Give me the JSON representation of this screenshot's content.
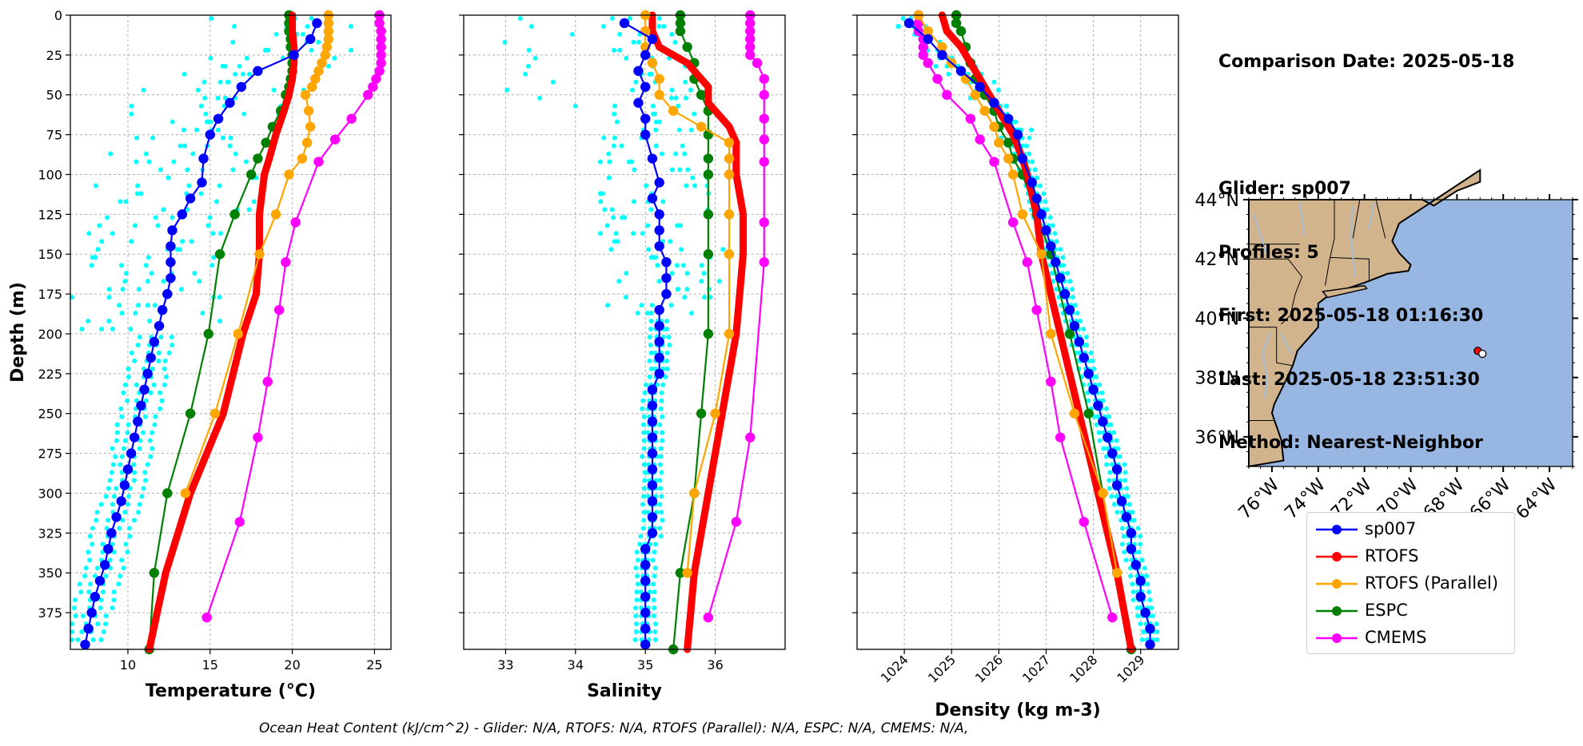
{
  "info": {
    "comparison_date": "Comparison Date: 2025-05-18",
    "glider": "Glider: sp007",
    "profiles": "Profiles: 5",
    "first": "First: 2025-05-18 01:16:30",
    "last": "Last: 2025-05-18 23:51:30",
    "method": "Method: Nearest-Neighbor"
  },
  "footer": "Ocean Heat Content (kJ/cm^2) - Glider: N/A,  RTOFS: N/A,  RTOFS (Parallel): N/A,  ESPC: N/A,  CMEMS: N/A,",
  "colors": {
    "sp007": "#0000ff",
    "RTOFS": "#ff0000",
    "RTOFS (Parallel)": "#ffa500",
    "ESPC": "#008000",
    "CMEMS": "#ff00ff",
    "individual_profiles": "#00ffff",
    "land": "#d2b48c",
    "ocean": "#97b6e1",
    "rivers": "#a6bcd6"
  },
  "legend": [
    "sp007",
    "RTOFS",
    "RTOFS (Parallel)",
    "ESPC",
    "CMEMS"
  ],
  "chart_data": [
    {
      "type": "line",
      "xlabel": "Temperature (°C)",
      "ylabel": "Depth (m)",
      "xlim": [
        6.5,
        26
      ],
      "ylim": [
        398,
        0
      ],
      "xticks": [
        10,
        15,
        20,
        25
      ],
      "yticks": [
        0,
        25,
        50,
        75,
        100,
        125,
        150,
        175,
        200,
        225,
        250,
        275,
        300,
        325,
        350,
        375
      ],
      "grid": true,
      "series": [
        {
          "name": "sp007",
          "depth": [
            5,
            15,
            25,
            35,
            45,
            55,
            65,
            75,
            90,
            105,
            115,
            125,
            135,
            145,
            155,
            165,
            175,
            185,
            195,
            205,
            215,
            225,
            235,
            245,
            255,
            265,
            275,
            285,
            295,
            305,
            315,
            325,
            335,
            345,
            355,
            365,
            375,
            385,
            395
          ],
          "values": [
            21.5,
            21.1,
            20.1,
            17.9,
            16.9,
            16.2,
            15.5,
            15.0,
            14.6,
            14.5,
            13.8,
            13.3,
            12.7,
            12.6,
            12.6,
            12.6,
            12.4,
            12.1,
            11.9,
            11.6,
            11.4,
            11.2,
            11.0,
            10.8,
            10.6,
            10.4,
            10.2,
            10.0,
            9.8,
            9.6,
            9.3,
            9.0,
            8.8,
            8.6,
            8.3,
            8.0,
            7.8,
            7.6,
            7.4
          ]
        },
        {
          "name": "RTOFS",
          "depth": [
            0,
            10,
            20,
            30,
            40,
            50,
            60,
            75,
            90,
            100,
            125,
            150,
            175,
            200,
            250,
            300,
            350,
            398
          ],
          "values": [
            20.0,
            20.0,
            20.1,
            20.1,
            20.0,
            19.8,
            19.5,
            19.0,
            18.6,
            18.3,
            18.0,
            18.0,
            17.8,
            17.0,
            15.8,
            13.8,
            12.3,
            11.3
          ],
          "bold": true
        },
        {
          "name": "RTOFS (Parallel)",
          "depth": [
            0,
            5,
            10,
            15,
            20,
            25,
            30,
            35,
            40,
            45,
            50,
            60,
            70,
            80,
            90,
            100,
            125,
            150,
            200,
            250,
            300
          ],
          "values": [
            22.2,
            22.2,
            22.2,
            22.2,
            22.1,
            22.0,
            21.8,
            21.6,
            21.4,
            21.2,
            20.8,
            21.0,
            21.1,
            20.9,
            20.6,
            19.8,
            19.0,
            18.0,
            16.7,
            15.3,
            13.5
          ]
        },
        {
          "name": "ESPC",
          "depth": [
            0,
            5,
            10,
            15,
            20,
            25,
            30,
            35,
            40,
            45,
            50,
            60,
            70,
            80,
            90,
            100,
            125,
            150,
            200,
            250,
            300,
            350,
            398
          ],
          "values": [
            19.8,
            19.8,
            19.8,
            19.9,
            19.9,
            20.0,
            20.0,
            20.0,
            19.9,
            19.8,
            19.6,
            19.3,
            18.8,
            18.4,
            17.9,
            17.5,
            16.5,
            15.6,
            14.9,
            13.8,
            12.4,
            11.6,
            11.3
          ]
        },
        {
          "name": "CMEMS",
          "depth": [
            0,
            5,
            10,
            15,
            20,
            25,
            30,
            35,
            40,
            45,
            50,
            65,
            78,
            92,
            130,
            155,
            185,
            230,
            265,
            318,
            378
          ],
          "values": [
            25.3,
            25.3,
            25.4,
            25.4,
            25.4,
            25.4,
            25.4,
            25.3,
            25.1,
            24.9,
            24.6,
            23.6,
            22.6,
            21.6,
            20.2,
            19.6,
            19.2,
            18.5,
            17.9,
            16.8,
            14.8
          ]
        }
      ]
    },
    {
      "type": "line",
      "xlabel": "Salinity",
      "ylabel": "",
      "xlim": [
        32.4,
        37.0
      ],
      "ylim": [
        398,
        0
      ],
      "xticks": [
        33,
        34,
        35,
        36
      ],
      "yticks": [
        0,
        25,
        50,
        75,
        100,
        125,
        150,
        175,
        200,
        225,
        250,
        275,
        300,
        325,
        350,
        375
      ],
      "grid": true,
      "series": [
        {
          "name": "sp007",
          "depth": [
            5,
            15,
            25,
            35,
            45,
            55,
            65,
            75,
            90,
            105,
            115,
            125,
            135,
            145,
            155,
            165,
            175,
            185,
            195,
            205,
            215,
            225,
            235,
            245,
            255,
            265,
            275,
            285,
            295,
            305,
            315,
            325,
            335,
            345,
            355,
            365,
            375,
            385,
            395
          ],
          "values": [
            34.7,
            35.1,
            35.0,
            34.9,
            35.0,
            34.9,
            35.0,
            35.0,
            35.1,
            35.2,
            35.1,
            35.2,
            35.2,
            35.2,
            35.3,
            35.3,
            35.3,
            35.2,
            35.2,
            35.2,
            35.2,
            35.2,
            35.1,
            35.1,
            35.1,
            35.1,
            35.1,
            35.1,
            35.1,
            35.1,
            35.1,
            35.1,
            35.0,
            35.0,
            35.0,
            35.0,
            35.0,
            35.0,
            35.0
          ]
        },
        {
          "name": "RTOFS",
          "depth": [
            0,
            10,
            20,
            25,
            30,
            35,
            40,
            45,
            50,
            55,
            60,
            70,
            80,
            100,
            125,
            150,
            200,
            250,
            300,
            350,
            398
          ],
          "values": [
            35.1,
            35.1,
            35.2,
            35.4,
            35.6,
            35.7,
            35.8,
            35.9,
            35.9,
            35.9,
            36.0,
            36.2,
            36.3,
            36.3,
            36.4,
            36.4,
            36.3,
            36.1,
            35.9,
            35.7,
            35.6
          ],
          "bold": true
        },
        {
          "name": "RTOFS (Parallel)",
          "depth": [
            0,
            10,
            20,
            30,
            40,
            50,
            60,
            70,
            80,
            90,
            100,
            125,
            150,
            200,
            250,
            300,
            350
          ],
          "values": [
            35.0,
            35.0,
            35.0,
            35.1,
            35.2,
            35.2,
            35.4,
            35.8,
            36.2,
            36.2,
            36.2,
            36.2,
            36.2,
            36.2,
            36.0,
            35.7,
            35.6
          ]
        },
        {
          "name": "ESPC",
          "depth": [
            0,
            5,
            10,
            20,
            30,
            40,
            50,
            60,
            75,
            90,
            100,
            125,
            150,
            200,
            250,
            300,
            350,
            398
          ],
          "values": [
            35.5,
            35.5,
            35.5,
            35.6,
            35.7,
            35.7,
            35.8,
            35.9,
            35.9,
            35.9,
            35.9,
            35.9,
            35.9,
            35.9,
            35.8,
            35.7,
            35.5,
            35.4
          ]
        },
        {
          "name": "CMEMS",
          "depth": [
            0,
            5,
            10,
            15,
            20,
            25,
            30,
            40,
            50,
            65,
            78,
            92,
            130,
            155,
            265,
            318,
            378
          ],
          "values": [
            36.5,
            36.5,
            36.5,
            36.5,
            36.5,
            36.5,
            36.6,
            36.7,
            36.7,
            36.7,
            36.7,
            36.7,
            36.7,
            36.7,
            36.5,
            36.3,
            35.9
          ]
        }
      ]
    },
    {
      "type": "line",
      "xlabel": "Density (kg m-3)",
      "ylabel": "",
      "xlim": [
        1023.0,
        1029.8
      ],
      "ylim": [
        398,
        0
      ],
      "xticks": [
        1024,
        1025,
        1026,
        1027,
        1028,
        1029
      ],
      "yticks": [
        0,
        25,
        50,
        75,
        100,
        125,
        150,
        175,
        200,
        225,
        250,
        275,
        300,
        325,
        350,
        375
      ],
      "grid": true,
      "series": [
        {
          "name": "sp007",
          "depth": [
            5,
            15,
            25,
            35,
            45,
            55,
            65,
            75,
            90,
            105,
            115,
            125,
            135,
            145,
            155,
            165,
            175,
            185,
            195,
            205,
            215,
            225,
            235,
            245,
            255,
            265,
            275,
            285,
            295,
            305,
            315,
            325,
            335,
            345,
            355,
            365,
            375,
            385,
            395
          ],
          "values": [
            1024.1,
            1024.5,
            1024.8,
            1025.2,
            1025.6,
            1025.9,
            1026.2,
            1026.4,
            1026.5,
            1026.7,
            1026.8,
            1026.9,
            1027.0,
            1027.1,
            1027.2,
            1027.3,
            1027.4,
            1027.5,
            1027.6,
            1027.7,
            1027.8,
            1027.9,
            1028.0,
            1028.1,
            1028.2,
            1028.3,
            1028.4,
            1028.5,
            1028.5,
            1028.6,
            1028.7,
            1028.8,
            1028.8,
            1028.9,
            1029.0,
            1029.0,
            1029.1,
            1029.2,
            1029.2
          ]
        },
        {
          "name": "RTOFS",
          "depth": [
            0,
            10,
            20,
            30,
            40,
            50,
            60,
            75,
            90,
            100,
            125,
            150,
            200,
            250,
            300,
            350,
            398
          ],
          "values": [
            1024.8,
            1024.9,
            1025.2,
            1025.4,
            1025.6,
            1025.8,
            1026.0,
            1026.3,
            1026.5,
            1026.6,
            1026.8,
            1026.9,
            1027.3,
            1027.7,
            1028.1,
            1028.5,
            1028.8
          ],
          "bold": true
        },
        {
          "name": "RTOFS (Parallel)",
          "depth": [
            0,
            10,
            20,
            30,
            40,
            50,
            60,
            70,
            80,
            90,
            100,
            125,
            150,
            200,
            250,
            300,
            350
          ],
          "values": [
            1024.3,
            1024.5,
            1024.8,
            1025.0,
            1025.3,
            1025.5,
            1025.7,
            1025.9,
            1026.0,
            1026.2,
            1026.3,
            1026.5,
            1026.9,
            1027.1,
            1027.6,
            1028.2,
            1028.5
          ]
        },
        {
          "name": "ESPC",
          "depth": [
            0,
            5,
            10,
            20,
            30,
            40,
            50,
            60,
            70,
            80,
            90,
            100,
            125,
            150,
            200,
            250,
            300,
            350,
            398
          ],
          "values": [
            1025.1,
            1025.1,
            1025.2,
            1025.3,
            1025.4,
            1025.5,
            1025.7,
            1025.9,
            1026.0,
            1026.2,
            1026.3,
            1026.5,
            1026.8,
            1027.1,
            1027.5,
            1027.9,
            1028.2,
            1028.5,
            1028.8
          ]
        },
        {
          "name": "CMEMS",
          "depth": [
            0,
            5,
            10,
            15,
            20,
            25,
            30,
            40,
            50,
            65,
            78,
            92,
            130,
            155,
            185,
            230,
            265,
            318,
            378
          ],
          "values": [
            1024.3,
            1024.3,
            1024.3,
            1024.4,
            1024.4,
            1024.4,
            1024.5,
            1024.7,
            1024.9,
            1025.4,
            1025.6,
            1025.9,
            1026.3,
            1026.6,
            1026.8,
            1027.1,
            1027.3,
            1027.8,
            1028.4
          ]
        }
      ]
    },
    {
      "type": "map",
      "lat_ticks": [
        "44°N",
        "42°N",
        "40°N",
        "38°N",
        "36°N"
      ],
      "lon_ticks": [
        "76°W",
        "74°W",
        "72°W",
        "70°W",
        "68°W",
        "66°W",
        "64°W"
      ],
      "lat_range": [
        35,
        44
      ],
      "lon_range": [
        -77,
        -63
      ],
      "markers": [
        {
          "name": "RTOFS",
          "lon": -67.1,
          "lat": 38.9
        },
        {
          "name": "sp007",
          "lon": -66.9,
          "lat": 38.8
        }
      ]
    }
  ]
}
